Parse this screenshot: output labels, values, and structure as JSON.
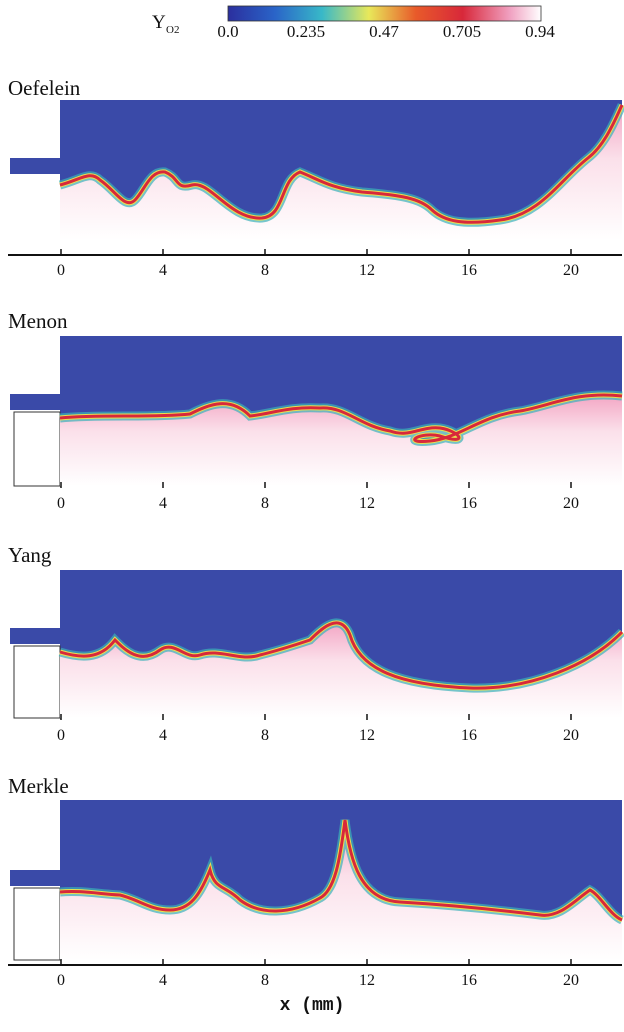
{
  "colorbar": {
    "label": "Y",
    "label_sub": "O2",
    "ticks": [
      "0.0",
      "0.235",
      "0.47",
      "0.705",
      "0.94"
    ]
  },
  "panels": [
    {
      "name": "Oefelein",
      "ticks": [
        "0",
        "4",
        "8",
        "12",
        "16",
        "20"
      ]
    },
    {
      "name": "Menon",
      "ticks": [
        "0",
        "4",
        "8",
        "12",
        "16",
        "20"
      ]
    },
    {
      "name": "Yang",
      "ticks": [
        "0",
        "4",
        "8",
        "12",
        "16",
        "20"
      ]
    },
    {
      "name": "Merkle",
      "ticks": [
        "0",
        "4",
        "8",
        "12",
        "16",
        "20"
      ]
    }
  ],
  "x_label": "x (mm)"
}
